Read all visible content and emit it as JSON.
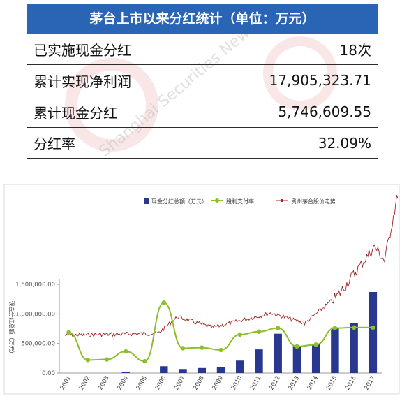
{
  "summary": {
    "title": "茅台上市以来分红统计（单位：万元）",
    "rows": [
      {
        "label": "已实施现金分红",
        "value": "18次"
      },
      {
        "label": "累计实现净利润",
        "value": "17,905,323.71"
      },
      {
        "label": "累计现金分红",
        "value": "5,746,609.55"
      },
      {
        "label": "分红率",
        "value": "32.09%"
      }
    ],
    "watermark": "Shanghai Securities News"
  },
  "colors": {
    "header_bg": "#2a64b4",
    "bar": "#28388f",
    "line": "#8cbf2a",
    "price": "#9c2424"
  },
  "chart_data": {
    "type": "bar",
    "categories": [
      "2001",
      "2002",
      "2003",
      "2004",
      "2005",
      "2006",
      "2007",
      "2008",
      "2009",
      "2010",
      "2011",
      "2012",
      "2013",
      "2014",
      "2015",
      "2016",
      "2017"
    ],
    "ylabel": "现金分红总额（万元）",
    "ylim": [
      0,
      1500000
    ],
    "yticks": [
      "0.00",
      "500,000.00",
      "1,000,000.00",
      "1,500,000.00"
    ],
    "series": [
      {
        "name": "现金分红总额（万元）",
        "kind": "bar",
        "values": [
          0,
          0,
          0,
          12000,
          0,
          115000,
          68000,
          85000,
          95000,
          210000,
          400000,
          665000,
          460000,
          490000,
          770000,
          850000,
          1370000
        ]
      },
      {
        "name": "股利支付率",
        "kind": "line",
        "values": [
          690000,
          220000,
          230000,
          365000,
          200000,
          1190000,
          420000,
          430000,
          390000,
          650000,
          700000,
          760000,
          450000,
          480000,
          760000,
          770000,
          770000
        ]
      },
      {
        "name": "贵州茅台股价走势",
        "kind": "line"
      }
    ],
    "legend_position": "top",
    "grid": false
  }
}
